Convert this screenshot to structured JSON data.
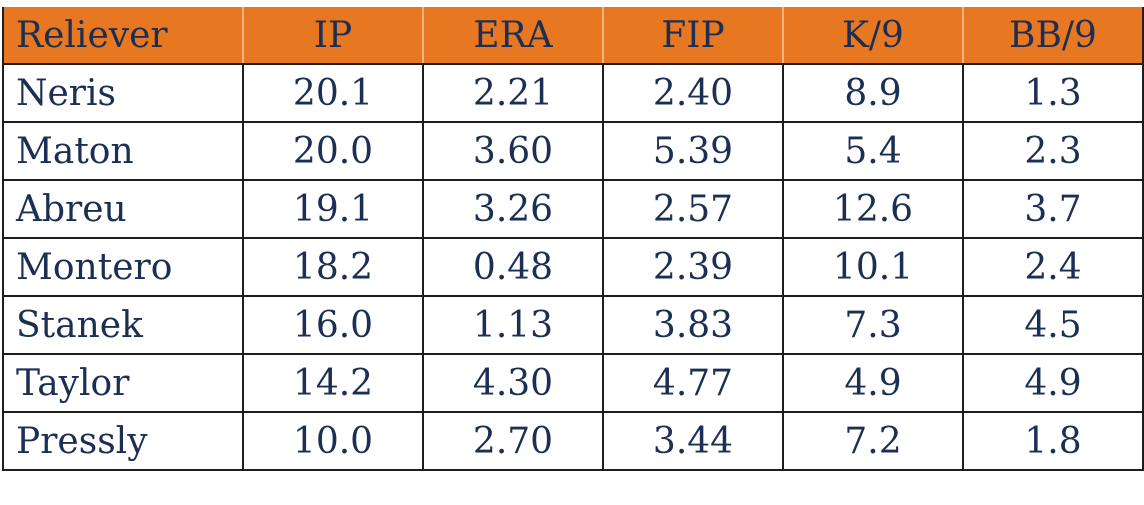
{
  "chart_data": {
    "type": "table",
    "columns": [
      "Reliever",
      "IP",
      "ERA",
      "FIP",
      "K/9",
      "BB/9"
    ],
    "rows": [
      [
        "Neris",
        "20.1",
        "2.21",
        "2.40",
        "8.9",
        "1.3"
      ],
      [
        "Maton",
        "20.0",
        "3.60",
        "5.39",
        "5.4",
        "2.3"
      ],
      [
        "Abreu",
        "19.1",
        "3.26",
        "2.57",
        "12.6",
        "3.7"
      ],
      [
        "Montero",
        "18.2",
        "0.48",
        "2.39",
        "10.1",
        "2.4"
      ],
      [
        "Stanek",
        "16.0",
        "1.13",
        "3.83",
        "7.3",
        "4.5"
      ],
      [
        "Taylor",
        "14.2",
        "4.30",
        "4.77",
        "4.9",
        "4.9"
      ],
      [
        "Pressly",
        "10.0",
        "2.70",
        "3.44",
        "7.2",
        "1.8"
      ]
    ],
    "header_color": "#e87722",
    "text_color": "#1b2f55"
  }
}
